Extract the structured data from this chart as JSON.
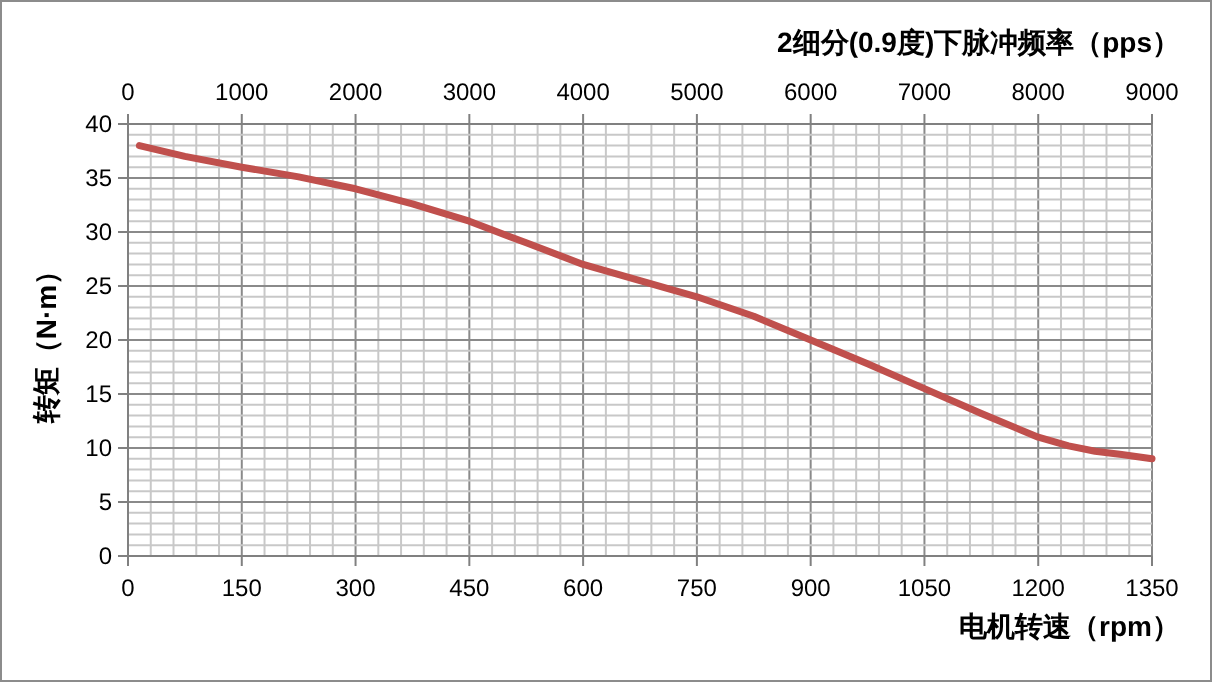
{
  "chart_data": {
    "type": "line",
    "xlabel": "电机转速（rpm）",
    "ylabel": "转矩（N·m）",
    "x2label": "2细分(0.9度)下脉冲频率（pps）",
    "xlim": [
      0,
      1350
    ],
    "xticks": [
      0,
      150,
      300,
      450,
      600,
      750,
      900,
      1050,
      1200,
      1350
    ],
    "x2lim": [
      0,
      9000
    ],
    "x2ticks": [
      0,
      1000,
      2000,
      3000,
      4000,
      5000,
      6000,
      7000,
      8000,
      9000
    ],
    "ylim": [
      0,
      40
    ],
    "yticks": [
      0,
      5,
      10,
      15,
      20,
      25,
      30,
      35,
      40
    ],
    "grid": true,
    "marker": "none",
    "line_style": "solid",
    "series": [
      {
        "color": "#c0504d",
        "x": [
          15,
          75,
          150,
          225,
          300,
          375,
          450,
          525,
          600,
          675,
          750,
          825,
          900,
          975,
          1050,
          1125,
          1200,
          1240,
          1275,
          1310,
          1350
        ],
        "values": [
          38,
          37,
          36,
          35.1,
          34,
          32.6,
          31,
          29,
          27,
          25.5,
          24,
          22.2,
          20,
          17.8,
          15.5,
          13.2,
          11,
          10.2,
          9.7,
          9.4,
          9
        ]
      }
    ]
  }
}
